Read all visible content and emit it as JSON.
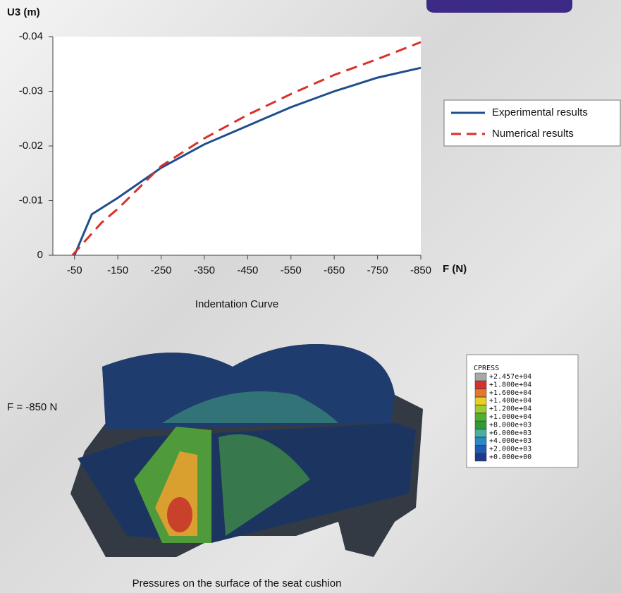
{
  "chart_data": {
    "type": "line",
    "title": "Indentation Curve",
    "x_label": "F (N)",
    "y_label": "U3 (m)",
    "xlim": [
      0,
      -850
    ],
    "xticks": [
      -50,
      -150,
      -250,
      -350,
      -450,
      -550,
      -650,
      -750,
      -850
    ],
    "ylim": [
      0,
      -0.04
    ],
    "yticks": [
      0,
      -0.01,
      -0.02,
      -0.03,
      -0.04
    ],
    "series": [
      {
        "name": "Experimental results",
        "color": "#1f4e8c",
        "dash": false,
        "x": [
          -50,
          -90,
          -150,
          -250,
          -350,
          -450,
          -550,
          -650,
          -750,
          -850
        ],
        "values": [
          0,
          -0.0075,
          -0.0105,
          -0.016,
          -0.0203,
          -0.0237,
          -0.0271,
          -0.03,
          -0.0325,
          -0.0343
        ]
      },
      {
        "name": "Numerical results",
        "color": "#d9312b",
        "dash": true,
        "x": [
          -45,
          -113,
          -150,
          -250,
          -350,
          -450,
          -550,
          -650,
          -750,
          -850
        ],
        "values": [
          0,
          -0.006,
          -0.0085,
          -0.0163,
          -0.0214,
          -0.0257,
          -0.0295,
          -0.033,
          -0.0359,
          -0.039
        ]
      }
    ]
  },
  "force_label": "F = -850 N",
  "image_caption": "Pressures on the surface of the seat cushion",
  "contour_legend": {
    "title": "CPRESS",
    "labels": [
      "+2.457e+04",
      "+1.800e+04",
      "+1.600e+04",
      "+1.400e+04",
      "+1.200e+04",
      "+1.000e+04",
      "+8.000e+03",
      "+6.000e+03",
      "+4.000e+03",
      "+2.000e+03",
      "+0.000e+00"
    ]
  }
}
